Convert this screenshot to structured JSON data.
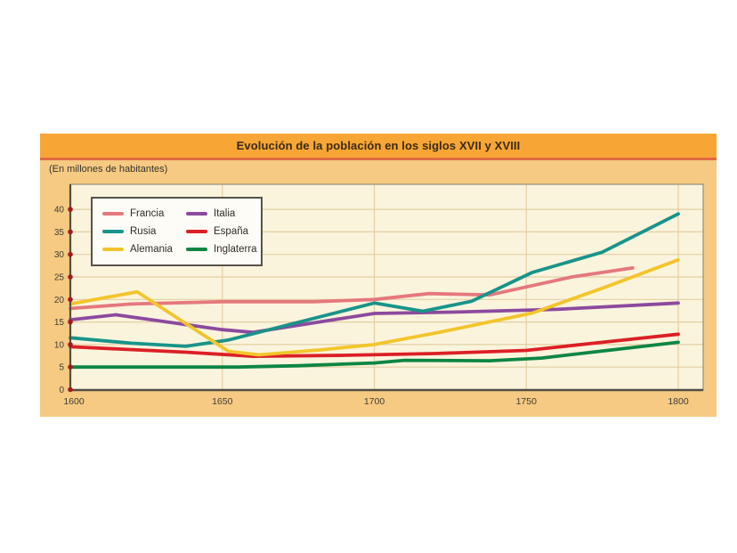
{
  "panel": {
    "title": "Evolución de la población en los siglos XVII y XVIII",
    "subtitle": "(En millones de habitantes)"
  },
  "colors": {
    "card_bg": "#f6ca82",
    "title_bar_bg": "#f7a636",
    "title_text": "#3a2a12",
    "title_divider": "#e06a43",
    "plot_bg": "#fbf4dd",
    "grid_line": "#e2cfa2",
    "plot_border": "#94907f",
    "axis_line": "#514e45",
    "tick_dot": "#9e1c22",
    "tick_text": "#3e3c35",
    "legend_bg": "#fdfcf6",
    "legend_border": "#55534b"
  },
  "chart_data": {
    "type": "line",
    "title": "Evolución de la población en los siglos XVII y XVIII",
    "unit_note": "(En millones de habitantes)",
    "xlabel": "",
    "ylabel": "",
    "xlim": [
      1600,
      1808
    ],
    "ylim": [
      0,
      40
    ],
    "x_ticks": [
      1600,
      1650,
      1700,
      1750,
      1800
    ],
    "y_ticks": [
      0,
      5,
      10,
      15,
      20,
      25,
      30,
      35,
      40
    ],
    "grid": true,
    "legend_position": "top-left",
    "series": [
      {
        "name": "Francia",
        "color": "#e5787d",
        "points": [
          [
            1600,
            18
          ],
          [
            1620,
            19
          ],
          [
            1650,
            19.5
          ],
          [
            1680,
            19.5
          ],
          [
            1700,
            20
          ],
          [
            1718,
            21.3
          ],
          [
            1738,
            21
          ],
          [
            1765,
            25
          ],
          [
            1785,
            27
          ]
        ]
      },
      {
        "name": "Rusia",
        "color": "#18948a",
        "points": [
          [
            1600,
            11.5
          ],
          [
            1620,
            10.3
          ],
          [
            1638,
            9.6
          ],
          [
            1652,
            11
          ],
          [
            1700,
            19.2
          ],
          [
            1716,
            17.4
          ],
          [
            1732,
            19.6
          ],
          [
            1752,
            26
          ],
          [
            1775,
            30.5
          ],
          [
            1800,
            39
          ]
        ]
      },
      {
        "name": "Alemania",
        "color": "#f2c52c",
        "points": [
          [
            1600,
            19
          ],
          [
            1622,
            21.7
          ],
          [
            1652,
            8.5
          ],
          [
            1662,
            7.7
          ],
          [
            1682,
            8.8
          ],
          [
            1700,
            10
          ],
          [
            1722,
            12.8
          ],
          [
            1752,
            17
          ],
          [
            1775,
            22.5
          ],
          [
            1800,
            28.8
          ]
        ]
      },
      {
        "name": "Italia",
        "color": "#8c4a9e",
        "points": [
          [
            1600,
            15.5
          ],
          [
            1615,
            16.6
          ],
          [
            1650,
            13.3
          ],
          [
            1660,
            12.7
          ],
          [
            1700,
            16.9
          ],
          [
            1726,
            17.2
          ],
          [
            1760,
            17.8
          ],
          [
            1800,
            19.2
          ]
        ]
      },
      {
        "name": "España",
        "color": "#dc1f26",
        "points": [
          [
            1600,
            9.5
          ],
          [
            1638,
            8.3
          ],
          [
            1660,
            7.4
          ],
          [
            1690,
            7.6
          ],
          [
            1720,
            8
          ],
          [
            1750,
            8.7
          ],
          [
            1775,
            10.5
          ],
          [
            1800,
            12.3
          ]
        ]
      },
      {
        "name": "Inglaterra",
        "color": "#0d8644",
        "points": [
          [
            1600,
            5
          ],
          [
            1655,
            5
          ],
          [
            1675,
            5.3
          ],
          [
            1700,
            5.9
          ],
          [
            1710,
            6.5
          ],
          [
            1738,
            6.4
          ],
          [
            1755,
            7
          ],
          [
            1778,
            8.8
          ],
          [
            1800,
            10.5
          ]
        ]
      }
    ]
  }
}
